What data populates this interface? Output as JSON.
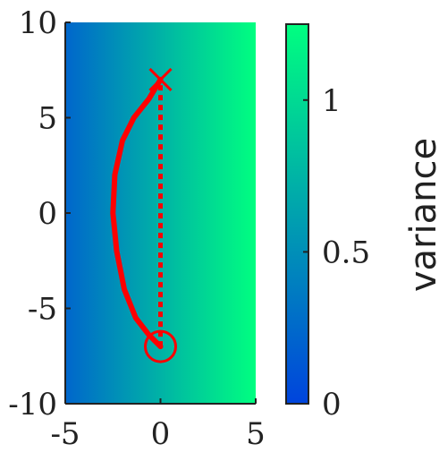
{
  "chart_data": {
    "type": "heatmap",
    "title": "",
    "xlabel": "",
    "ylabel": "",
    "xlim": [
      -5,
      5
    ],
    "ylim": [
      -10,
      10
    ],
    "x_ticks": [
      -5,
      0,
      5
    ],
    "x_tick_labels": [
      "-5",
      "0",
      "5"
    ],
    "y_ticks": [
      -10,
      -5,
      0,
      5,
      10
    ],
    "y_tick_labels": [
      "-10",
      "-5",
      "0",
      "5",
      "10"
    ],
    "grid": false,
    "background_gradient": {
      "direction": "x",
      "x_range": [
        -5,
        5
      ],
      "variance_range": [
        0.45,
        1.25
      ],
      "colormap": "winter",
      "colors": [
        "#0066cc",
        "#00ff80"
      ]
    },
    "colorbar": {
      "label": "variance",
      "range": [
        0,
        1.25
      ],
      "ticks": [
        0,
        0.5,
        1
      ],
      "tick_labels": [
        "0",
        "0.5",
        "1"
      ],
      "colors": [
        "#0044dd",
        "#00ff80"
      ]
    },
    "paths": [
      {
        "style": "solid",
        "color": "#ff0000",
        "points": [
          [
            0,
            -7.0
          ],
          [
            -0.6,
            -6.4
          ],
          [
            -1.3,
            -5.5
          ],
          [
            -1.9,
            -4.0
          ],
          [
            -2.3,
            -2.0
          ],
          [
            -2.5,
            0.0
          ],
          [
            -2.4,
            2.0
          ],
          [
            -2.0,
            3.8
          ],
          [
            -1.4,
            5.0
          ],
          [
            -0.6,
            6.0
          ],
          [
            0,
            7.0
          ]
        ]
      },
      {
        "style": "dotted",
        "color": "#ff0000",
        "points": [
          [
            0,
            -7.0
          ],
          [
            0,
            7.0
          ]
        ]
      }
    ],
    "markers": [
      {
        "type": "circle",
        "x": 0,
        "y": -7.0,
        "color": "#ff0000"
      },
      {
        "type": "x",
        "x": 0,
        "y": 7.0,
        "color": "#ff0000"
      }
    ]
  }
}
